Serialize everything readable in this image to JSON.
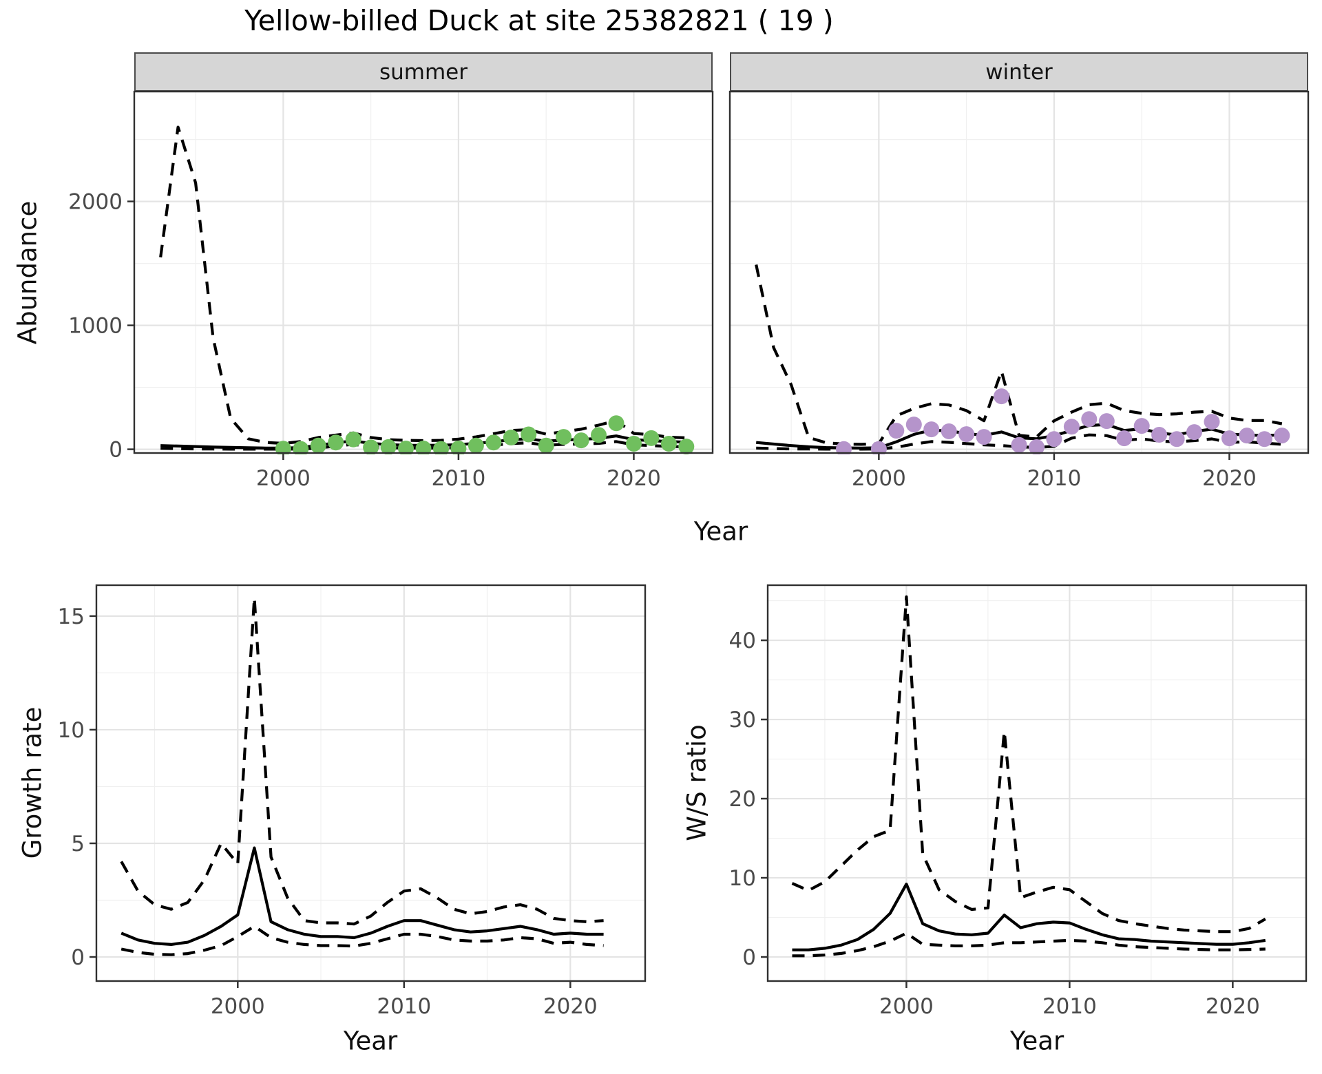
{
  "title": "Yellow-billed Duck at site 25382821 ( 19 )",
  "facets": [
    "summer",
    "winter"
  ],
  "axes": {
    "x_label": "Year",
    "abundance_label": "Abundance",
    "growth_label": "Growth rate",
    "ws_label": "W/S ratio"
  },
  "colors": {
    "summer_points": "#70bf5e",
    "winter_points": "#b594cb",
    "line": "#000000",
    "strip_bg": "#d6d6d6",
    "strip_border": "#4b4b4b",
    "panel_border": "#2f2f2f",
    "grid_major": "#e4e4e4",
    "grid_minor": "#f0f0f0",
    "tick_text": "#4a4a4a"
  },
  "chart_data": [
    {
      "id": "abundance_summer",
      "type": "line",
      "facet": "summer",
      "title": "",
      "xlabel": "Year",
      "ylabel": "Abundance",
      "xlim": [
        1991.5,
        2024.5
      ],
      "ylim": [
        -30,
        2886.7
      ],
      "xticks": [
        2000,
        2010,
        2020
      ],
      "yticks": [
        0,
        1000,
        2000
      ],
      "grid": true,
      "legend": "none",
      "x": [
        1993,
        1994,
        1995,
        1996,
        1997,
        1998,
        1999,
        2000,
        2001,
        2002,
        2003,
        2004,
        2005,
        2006,
        2007,
        2008,
        2009,
        2010,
        2011,
        2012,
        2013,
        2014,
        2015,
        2016,
        2017,
        2018,
        2019,
        2020,
        2021,
        2022,
        2023
      ],
      "series": [
        {
          "name": "median",
          "style": "solid",
          "values": [
            30,
            26,
            22,
            18,
            15,
            12,
            10,
            10,
            14,
            32,
            52,
            68,
            48,
            38,
            33,
            32,
            33,
            38,
            48,
            60,
            78,
            85,
            65,
            75,
            80,
            88,
            108,
            78,
            70,
            62,
            58
          ]
        },
        {
          "name": "upper_ci",
          "style": "dashed",
          "values": [
            1550,
            2600,
            2150,
            900,
            250,
            85,
            55,
            48,
            62,
            95,
            115,
            132,
            95,
            78,
            72,
            70,
            72,
            82,
            100,
            125,
            152,
            158,
            122,
            142,
            162,
            195,
            232,
            128,
            118,
            98,
            92
          ]
        },
        {
          "name": "lower_ci",
          "style": "dashed",
          "values": [
            8,
            5,
            3,
            2,
            1,
            1,
            1,
            1,
            2,
            10,
            26,
            40,
            20,
            13,
            10,
            10,
            10,
            13,
            21,
            32,
            46,
            52,
            32,
            40,
            42,
            48,
            62,
            36,
            30,
            23,
            20
          ]
        }
      ],
      "points": {
        "name": "observed_counts",
        "color_key": "summer_points",
        "x": [
          2000,
          2001,
          2002,
          2003,
          2004,
          2005,
          2006,
          2007,
          2008,
          2009,
          2010,
          2011,
          2012,
          2013,
          2014,
          2015,
          2016,
          2017,
          2018,
          2019,
          2020,
          2021,
          2022,
          2023
        ],
        "y": [
          5,
          3,
          30,
          55,
          80,
          15,
          18,
          6,
          6,
          3,
          6,
          30,
          55,
          95,
          120,
          30,
          100,
          72,
          115,
          210,
          45,
          90,
          45,
          22
        ]
      }
    },
    {
      "id": "abundance_winter",
      "type": "line",
      "facet": "winter",
      "title": "",
      "xlabel": "Year",
      "ylabel": "Abundance",
      "xlim": [
        1991.5,
        2024.5
      ],
      "ylim": [
        -30,
        2886.7
      ],
      "xticks": [
        2000,
        2010,
        2020
      ],
      "yticks": [
        0,
        1000,
        2000
      ],
      "grid": true,
      "legend": "none",
      "x": [
        1993,
        1994,
        1995,
        1996,
        1997,
        1998,
        1999,
        2000,
        2001,
        2002,
        2003,
        2004,
        2005,
        2006,
        2007,
        2008,
        2009,
        2010,
        2011,
        2012,
        2013,
        2014,
        2015,
        2016,
        2017,
        2018,
        2019,
        2020,
        2021,
        2022,
        2023
      ],
      "series": [
        {
          "name": "median",
          "style": "solid",
          "values": [
            55,
            42,
            30,
            20,
            14,
            11,
            10,
            12,
            60,
            120,
            155,
            148,
            128,
            112,
            140,
            92,
            85,
            110,
            152,
            192,
            200,
            152,
            165,
            132,
            116,
            145,
            162,
            122,
            116,
            110,
            118
          ]
        },
        {
          "name": "upper_ci",
          "style": "dashed",
          "values": [
            1490,
            820,
            520,
            95,
            52,
            42,
            40,
            46,
            270,
            330,
            368,
            358,
            312,
            230,
            630,
            112,
            100,
            230,
            300,
            360,
            372,
            312,
            290,
            280,
            286,
            300,
            306,
            252,
            232,
            232,
            206
          ]
        },
        {
          "name": "lower_ci",
          "style": "dashed",
          "values": [
            10,
            6,
            3,
            2,
            1,
            1,
            1,
            2,
            16,
            42,
            62,
            56,
            46,
            36,
            30,
            20,
            15,
            24,
            90,
            116,
            110,
            72,
            84,
            66,
            60,
            70,
            84,
            56,
            60,
            50,
            40
          ]
        }
      ],
      "points": {
        "name": "observed_counts",
        "color_key": "winter_points",
        "x": [
          1998,
          2000,
          2001,
          2002,
          2003,
          2004,
          2005,
          2006,
          2007,
          2008,
          2009,
          2010,
          2011,
          2012,
          2013,
          2014,
          2015,
          2016,
          2017,
          2018,
          2019,
          2020,
          2021,
          2022,
          2023
        ],
        "y": [
          2,
          2,
          150,
          200,
          161,
          145,
          122,
          100,
          428,
          35,
          17,
          83,
          183,
          244,
          228,
          89,
          189,
          117,
          83,
          139,
          222,
          89,
          111,
          83,
          111
        ]
      }
    },
    {
      "id": "growth_rate",
      "type": "line",
      "title": "",
      "xlabel": "Year",
      "ylabel": "Growth rate",
      "xlim": [
        1991.5,
        2024.5
      ],
      "ylim": [
        -1.06,
        16.36
      ],
      "xticks": [
        2000,
        2010,
        2020
      ],
      "yticks": [
        0,
        5,
        10,
        15
      ],
      "grid": true,
      "legend": "none",
      "x": [
        1993,
        1994,
        1995,
        1996,
        1997,
        1998,
        1999,
        2000,
        2001,
        2002,
        2003,
        2004,
        2005,
        2006,
        2007,
        2008,
        2009,
        2010,
        2011,
        2012,
        2013,
        2014,
        2015,
        2016,
        2017,
        2018,
        2019,
        2020,
        2021,
        2022
      ],
      "series": [
        {
          "name": "median",
          "style": "solid",
          "values": [
            1.05,
            0.75,
            0.6,
            0.55,
            0.65,
            0.95,
            1.35,
            1.85,
            4.8,
            1.55,
            1.2,
            1.0,
            0.9,
            0.9,
            0.85,
            1.05,
            1.35,
            1.6,
            1.6,
            1.4,
            1.2,
            1.1,
            1.15,
            1.25,
            1.35,
            1.2,
            1.0,
            1.05,
            1.0,
            1.0
          ]
        },
        {
          "name": "upper_ci",
          "style": "dashed",
          "values": [
            4.2,
            2.9,
            2.3,
            2.1,
            2.4,
            3.4,
            5.0,
            4.1,
            15.8,
            4.4,
            2.6,
            1.6,
            1.5,
            1.5,
            1.45,
            1.8,
            2.4,
            2.9,
            3.0,
            2.6,
            2.1,
            1.9,
            2.0,
            2.2,
            2.3,
            2.1,
            1.7,
            1.6,
            1.55,
            1.6
          ]
        },
        {
          "name": "lower_ci",
          "style": "dashed",
          "values": [
            0.35,
            0.2,
            0.12,
            0.1,
            0.15,
            0.3,
            0.5,
            0.9,
            1.35,
            0.85,
            0.65,
            0.55,
            0.5,
            0.5,
            0.48,
            0.6,
            0.8,
            1.0,
            1.0,
            0.9,
            0.75,
            0.7,
            0.7,
            0.75,
            0.85,
            0.8,
            0.6,
            0.65,
            0.55,
            0.5
          ]
        }
      ]
    },
    {
      "id": "ws_ratio",
      "type": "line",
      "title": "",
      "xlabel": "Year",
      "ylabel": "W/S ratio",
      "xlim": [
        1991.5,
        2024.5
      ],
      "ylim": [
        -3.04,
        46.96
      ],
      "xticks": [
        2000,
        2010,
        2020
      ],
      "yticks": [
        0,
        10,
        20,
        30,
        40
      ],
      "grid": true,
      "legend": "none",
      "x": [
        1993,
        1994,
        1995,
        1996,
        1997,
        1998,
        1999,
        2000,
        2001,
        2002,
        2003,
        2004,
        2005,
        2006,
        2007,
        2008,
        2009,
        2010,
        2011,
        2012,
        2013,
        2014,
        2015,
        2016,
        2017,
        2018,
        2019,
        2020,
        2021,
        2022
      ],
      "series": [
        {
          "name": "median",
          "style": "solid",
          "values": [
            0.9,
            0.9,
            1.1,
            1.5,
            2.2,
            3.5,
            5.5,
            9.2,
            4.2,
            3.3,
            2.9,
            2.8,
            3.0,
            5.3,
            3.7,
            4.2,
            4.4,
            4.3,
            3.5,
            2.8,
            2.3,
            2.2,
            2.0,
            1.9,
            1.8,
            1.7,
            1.6,
            1.6,
            1.8,
            2.1
          ]
        },
        {
          "name": "upper_ci",
          "style": "dashed",
          "values": [
            9.3,
            8.4,
            9.5,
            11.5,
            13.5,
            15.2,
            16.0,
            45.5,
            13.0,
            8.5,
            7.0,
            6.0,
            6.2,
            28.5,
            7.5,
            8.2,
            8.8,
            8.5,
            7.0,
            5.5,
            4.6,
            4.2,
            3.9,
            3.6,
            3.4,
            3.3,
            3.2,
            3.2,
            3.6,
            4.8
          ]
        },
        {
          "name": "lower_ci",
          "style": "dashed",
          "values": [
            0.15,
            0.15,
            0.25,
            0.45,
            0.8,
            1.3,
            2.0,
            3.0,
            1.6,
            1.5,
            1.4,
            1.4,
            1.5,
            1.8,
            1.8,
            1.9,
            2.0,
            2.1,
            2.0,
            1.8,
            1.5,
            1.3,
            1.2,
            1.1,
            1.0,
            0.95,
            0.9,
            0.9,
            0.95,
            1.0
          ]
        }
      ]
    }
  ]
}
